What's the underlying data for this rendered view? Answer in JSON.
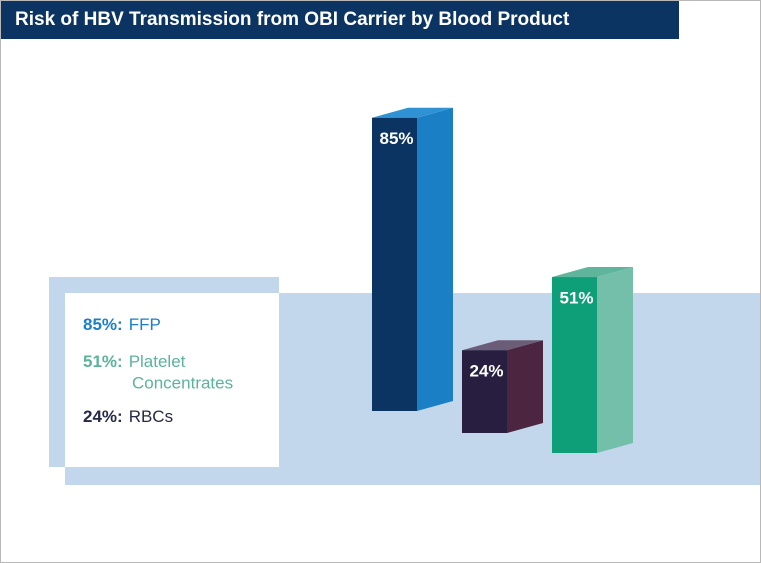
{
  "chart_data": {
    "type": "bar3d",
    "title": "Risk of HBV Transmission from OBI Carrier by Blood Product",
    "categories": [
      "FFP",
      "Platelet Concentrates",
      "RBCs"
    ],
    "values": [
      85,
      51,
      24
    ],
    "value_labels": [
      "85%",
      "51%",
      "24%"
    ],
    "legend_value_labels": [
      "85%:",
      "51%:",
      "24%:"
    ],
    "colors": [
      {
        "front": "#0b3463",
        "side": "#1b7fc6",
        "top": "#2f93d3"
      },
      {
        "front": "#0e9e78",
        "side": "#74bfaa",
        "top": "#5eb59c"
      },
      {
        "front": "#271e40",
        "side": "#4c2540",
        "top": "#6b5c77"
      }
    ],
    "label_colors": [
      "#1b7fc6",
      "#5bb39b",
      "#262848"
    ]
  }
}
